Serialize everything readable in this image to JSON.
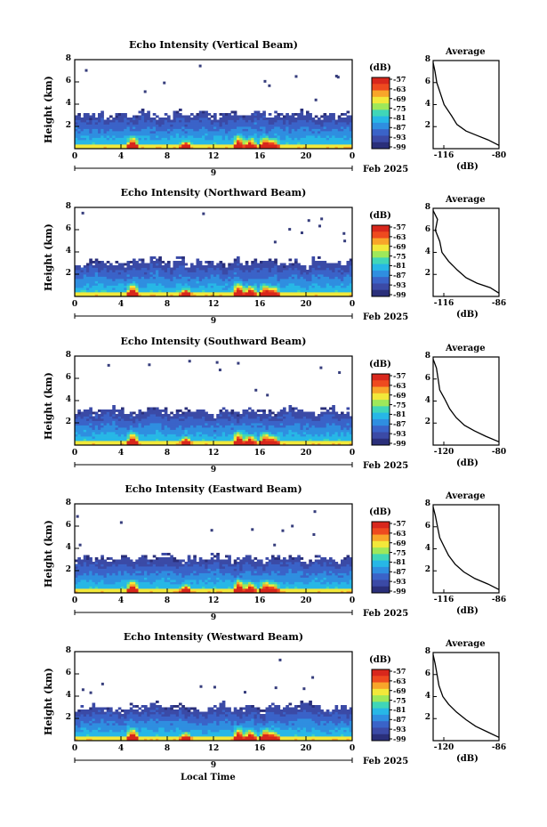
{
  "colors": {
    "colormap": [
      "#2a2f7a",
      "#3b4aa6",
      "#3a63c8",
      "#2f8ee0",
      "#27b7e6",
      "#40d6b8",
      "#9ee85a",
      "#f2e83a",
      "#f8a52a",
      "#ee4a1f",
      "#d8271c"
    ],
    "cell_base": "#363d7c"
  },
  "x_axis_label": "Local Time",
  "chart_data": [
    {
      "type": "heatmap",
      "title": "Echo Intensity (Vertical Beam)",
      "ylabel": "Height (km)",
      "xlim": [
        0,
        24
      ],
      "ylim": [
        0,
        8
      ],
      "xticks": [
        "0",
        "4",
        "8",
        "12",
        "16",
        "20",
        "0"
      ],
      "yticks": [
        "2",
        "4",
        "6",
        "8"
      ],
      "date_marker": "9",
      "date_label": "Feb 2025",
      "colorbar": {
        "label": "(dB)",
        "ticks": [
          "-57",
          "-63",
          "-69",
          "-75",
          "-81",
          "-87",
          "-93",
          "-99"
        ]
      },
      "boundary_km": [
        3.2,
        3.1,
        3.4,
        3.0,
        3.3,
        3.2,
        3.5,
        3.1,
        3.0,
        3.4,
        3.2,
        3.3,
        3.1,
        3.0,
        3.4,
        3.2,
        3.6,
        3.3,
        3.1,
        3.2,
        3.4,
        3.0,
        3.2,
        3.1,
        3.3
      ],
      "average_profile": {
        "title": "Average",
        "xlabel": "(dB)",
        "xticks": [
          "-116",
          "-80"
        ],
        "yticks": [
          "2",
          "4",
          "6",
          "8"
        ],
        "points": [
          [
            -80,
            0.3
          ],
          [
            -86,
            0.8
          ],
          [
            -92,
            1.2
          ],
          [
            -98,
            1.6
          ],
          [
            -103,
            2.2
          ],
          [
            -106,
            3.0
          ],
          [
            -110,
            4.0
          ],
          [
            -112,
            5.0
          ],
          [
            -114,
            6.0
          ],
          [
            -115,
            7.0
          ],
          [
            -116,
            7.8
          ]
        ]
      }
    },
    {
      "type": "heatmap",
      "title": "Echo Intensity (Northward Beam)",
      "ylabel": "Height (km)",
      "xlim": [
        0,
        24
      ],
      "ylim": [
        0,
        8
      ],
      "xticks": [
        "0",
        "4",
        "8",
        "12",
        "16",
        "20",
        "0"
      ],
      "yticks": [
        "2",
        "4",
        "6",
        "8"
      ],
      "date_marker": "9",
      "date_label": "Feb 2025",
      "colorbar": {
        "label": "(dB)",
        "ticks": [
          "-57",
          "-63",
          "-69",
          "-75",
          "-81",
          "-87",
          "-93",
          "-99"
        ]
      },
      "boundary_km": [
        3.0,
        3.2,
        3.4,
        3.1,
        3.0,
        3.3,
        3.2,
        3.6,
        3.1,
        3.5,
        3.0,
        3.3,
        3.2,
        3.1,
        3.4,
        3.0,
        3.3,
        3.5,
        3.1,
        3.2,
        3.0,
        3.4,
        3.2,
        3.1,
        3.3
      ],
      "average_profile": {
        "title": "Average",
        "xlabel": "(dB)",
        "xticks": [
          "-116",
          "-86"
        ],
        "yticks": [
          "2",
          "4",
          "6",
          "8"
        ],
        "points": [
          [
            -86,
            0.3
          ],
          [
            -90,
            0.8
          ],
          [
            -96,
            1.2
          ],
          [
            -101,
            1.7
          ],
          [
            -105,
            2.4
          ],
          [
            -109,
            3.2
          ],
          [
            -112,
            4.0
          ],
          [
            -113,
            5.0
          ],
          [
            -115,
            6.0
          ],
          [
            -114,
            7.0
          ],
          [
            -116,
            7.8
          ]
        ]
      }
    },
    {
      "type": "heatmap",
      "title": "Echo Intensity (Southward Beam)",
      "ylabel": "Height (km)",
      "xlim": [
        0,
        24
      ],
      "ylim": [
        0,
        8
      ],
      "xticks": [
        "0",
        "4",
        "8",
        "12",
        "16",
        "20",
        "0"
      ],
      "yticks": [
        "2",
        "4",
        "6",
        "8"
      ],
      "date_marker": "9",
      "date_label": "Feb 2025",
      "colorbar": {
        "label": "(dB)",
        "ticks": [
          "-57",
          "-63",
          "-69",
          "-75",
          "-81",
          "-87",
          "-93",
          "-99"
        ]
      },
      "boundary_km": [
        3.2,
        3.3,
        3.1,
        3.4,
        3.2,
        3.0,
        3.3,
        3.5,
        3.2,
        3.1,
        3.4,
        3.2,
        3.0,
        3.3,
        3.1,
        3.4,
        3.2,
        3.0,
        3.3,
        3.5,
        3.1,
        3.2,
        3.4,
        3.0,
        3.2
      ],
      "average_profile": {
        "title": "Average",
        "xlabel": "(dB)",
        "xticks": [
          "-120",
          "-80"
        ],
        "yticks": [
          "2",
          "4",
          "6",
          "8"
        ],
        "points": [
          [
            -80,
            0.3
          ],
          [
            -88,
            0.8
          ],
          [
            -95,
            1.3
          ],
          [
            -101,
            1.8
          ],
          [
            -106,
            2.5
          ],
          [
            -110,
            3.3
          ],
          [
            -113,
            4.2
          ],
          [
            -116,
            5.0
          ],
          [
            -117,
            6.0
          ],
          [
            -118,
            7.0
          ],
          [
            -120,
            7.8
          ]
        ]
      }
    },
    {
      "type": "heatmap",
      "title": "Echo Intensity (Eastward Beam)",
      "ylabel": "Height (km)",
      "xlim": [
        0,
        24
      ],
      "ylim": [
        0,
        8
      ],
      "xticks": [
        "0",
        "4",
        "8",
        "12",
        "16",
        "20",
        "0"
      ],
      "yticks": [
        "2",
        "4",
        "6",
        "8"
      ],
      "date_marker": "9",
      "date_label": "Feb 2025",
      "colorbar": {
        "label": "(dB)",
        "ticks": [
          "-57",
          "-63",
          "-69",
          "-75",
          "-81",
          "-87",
          "-93",
          "-99"
        ]
      },
      "boundary_km": [
        3.1,
        3.3,
        3.2,
        3.0,
        3.4,
        3.1,
        3.3,
        3.2,
        3.5,
        3.0,
        3.3,
        3.1,
        3.4,
        3.2,
        3.0,
        3.3,
        3.1,
        3.4,
        3.2,
        3.3,
        3.0,
        3.2,
        3.4,
        3.1,
        3.3
      ],
      "average_profile": {
        "title": "Average",
        "xlabel": "(dB)",
        "xticks": [
          "-116",
          "-86"
        ],
        "yticks": [
          "2",
          "4",
          "6",
          "8"
        ],
        "points": [
          [
            -86,
            0.3
          ],
          [
            -91,
            0.8
          ],
          [
            -97,
            1.3
          ],
          [
            -102,
            1.9
          ],
          [
            -106,
            2.6
          ],
          [
            -109,
            3.4
          ],
          [
            -111,
            4.2
          ],
          [
            -113,
            5.0
          ],
          [
            -114,
            6.0
          ],
          [
            -115,
            7.0
          ],
          [
            -116,
            7.8
          ]
        ]
      }
    },
    {
      "type": "heatmap",
      "title": "Echo Intensity (Westward Beam)",
      "ylabel": "Height (km)",
      "xlim": [
        0,
        24
      ],
      "ylim": [
        0,
        8
      ],
      "xticks": [
        "0",
        "4",
        "8",
        "12",
        "16",
        "20",
        "0"
      ],
      "yticks": [
        "2",
        "4",
        "6",
        "8"
      ],
      "date_marker": "9",
      "date_label": "Feb 2025",
      "colorbar": {
        "label": "(dB)",
        "ticks": [
          "-57",
          "-63",
          "-69",
          "-75",
          "-81",
          "-87",
          "-93",
          "-99"
        ]
      },
      "boundary_km": [
        2.9,
        3.1,
        3.2,
        3.0,
        2.8,
        3.2,
        3.1,
        3.4,
        3.0,
        3.3,
        3.1,
        2.9,
        3.2,
        3.4,
        3.0,
        3.1,
        2.9,
        3.3,
        3.0,
        3.2,
        3.4,
        3.1,
        3.0,
        3.2,
        2.9
      ],
      "average_profile": {
        "title": "Average",
        "xlabel": "(dB)",
        "xticks": [
          "-120",
          "-86"
        ],
        "yticks": [
          "2",
          "4",
          "6",
          "8"
        ],
        "points": [
          [
            -86,
            0.3
          ],
          [
            -92,
            0.8
          ],
          [
            -98,
            1.3
          ],
          [
            -103,
            1.9
          ],
          [
            -108,
            2.6
          ],
          [
            -112,
            3.3
          ],
          [
            -115,
            4.0
          ],
          [
            -117,
            5.0
          ],
          [
            -118,
            6.0
          ],
          [
            -119,
            7.0
          ],
          [
            -120,
            7.8
          ]
        ]
      }
    }
  ]
}
